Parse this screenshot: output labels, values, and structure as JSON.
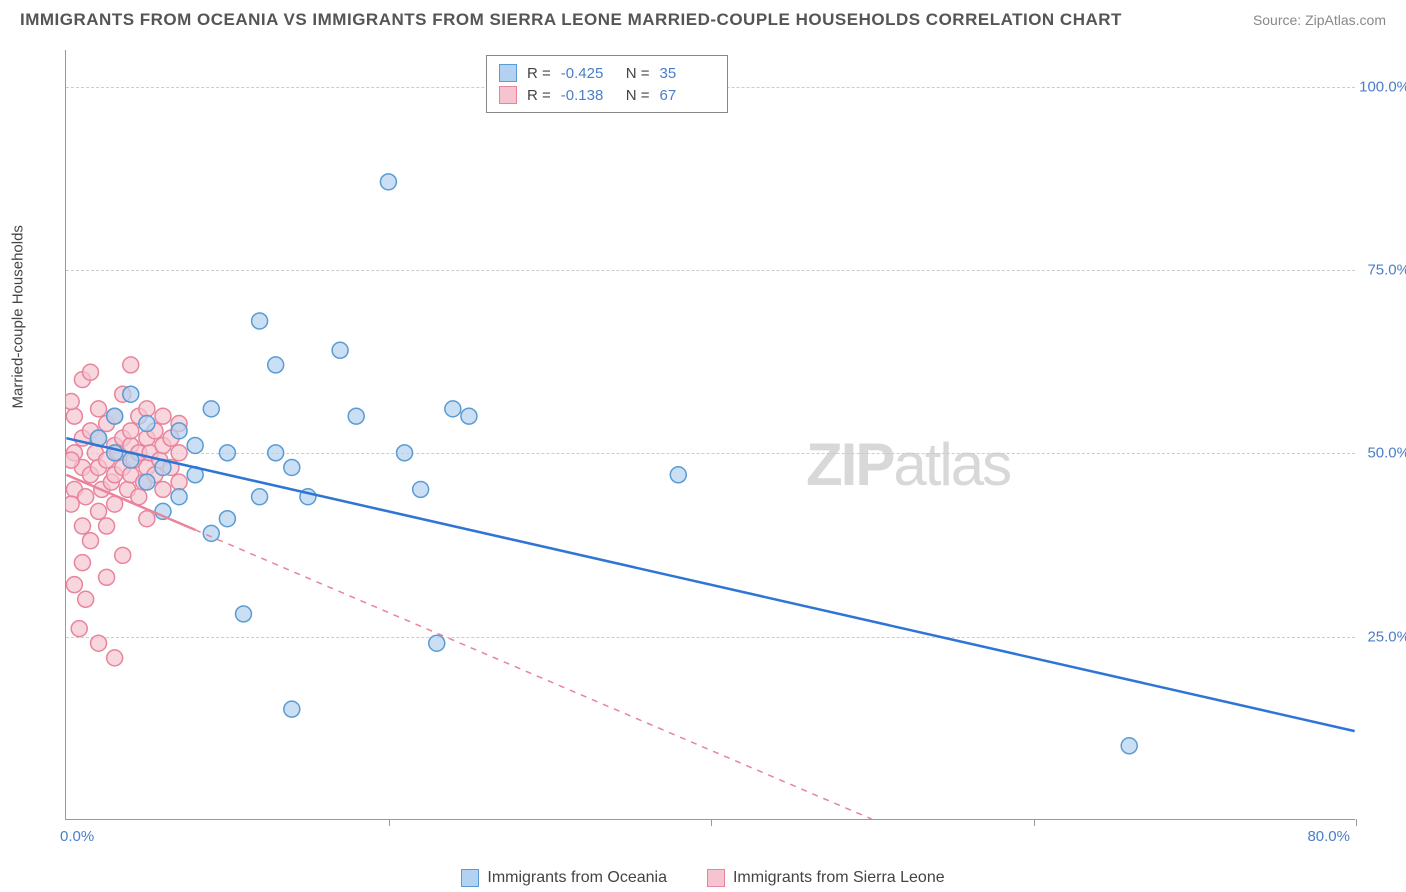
{
  "header": {
    "title": "IMMIGRANTS FROM OCEANIA VS IMMIGRANTS FROM SIERRA LEONE MARRIED-COUPLE HOUSEHOLDS CORRELATION CHART",
    "source": "Source: ZipAtlas.com"
  },
  "chart": {
    "type": "scatter",
    "y_axis_label": "Married-couple Households",
    "watermark": "ZIPatlas",
    "background_color": "#ffffff",
    "grid_color": "#cccccc",
    "axis_color": "#999999",
    "x_range": [
      0,
      80
    ],
    "y_range": [
      0,
      105
    ],
    "x_ticks": [
      0,
      20,
      40,
      60,
      80
    ],
    "x_tick_labels": {
      "0": "0.0%",
      "80": "80.0%"
    },
    "y_ticks": [
      25,
      50,
      75,
      100
    ],
    "y_tick_labels": {
      "25": "25.0%",
      "50": "50.0%",
      "75": "75.0%",
      "100": "100.0%"
    },
    "marker_radius": 8,
    "marker_stroke_width": 1.5,
    "line_width": 2.5,
    "series": [
      {
        "name": "Immigrants from Oceania",
        "color_fill": "#b3d1f0",
        "color_stroke": "#5a9bd4",
        "line_color": "#2e75d6",
        "R": "-0.425",
        "N": "35",
        "trend": {
          "x1": 0,
          "y1": 52,
          "x2": 80,
          "y2": 12,
          "dashed_after_x": null
        },
        "points": [
          [
            2,
            52
          ],
          [
            3,
            50
          ],
          [
            4,
            49
          ],
          [
            5,
            54
          ],
          [
            6,
            48
          ],
          [
            7,
            53
          ],
          [
            7,
            44
          ],
          [
            8,
            51
          ],
          [
            9,
            39
          ],
          [
            9,
            56
          ],
          [
            10,
            50
          ],
          [
            11,
            28
          ],
          [
            12,
            68
          ],
          [
            13,
            62
          ],
          [
            13,
            50
          ],
          [
            15,
            44
          ],
          [
            17,
            64
          ],
          [
            18,
            55
          ],
          [
            20,
            87
          ],
          [
            21,
            50
          ],
          [
            22,
            45
          ],
          [
            24,
            56
          ],
          [
            25,
            55
          ],
          [
            23,
            24
          ],
          [
            14,
            15
          ],
          [
            38,
            47
          ],
          [
            66,
            10
          ],
          [
            5,
            46
          ],
          [
            4,
            58
          ],
          [
            6,
            42
          ],
          [
            8,
            47
          ],
          [
            10,
            41
          ],
          [
            12,
            44
          ],
          [
            14,
            48
          ],
          [
            3,
            55
          ]
        ]
      },
      {
        "name": "Immigrants from Sierra Leone",
        "color_fill": "#f5c4d0",
        "color_stroke": "#e8849c",
        "line_color": "#e8849c",
        "R": "-0.138",
        "N": "67",
        "trend": {
          "x1": 0,
          "y1": 47,
          "x2": 50,
          "y2": 0,
          "dashed_after_x": 8
        },
        "points": [
          [
            0.5,
            50
          ],
          [
            0.5,
            45
          ],
          [
            0.5,
            55
          ],
          [
            1,
            48
          ],
          [
            1,
            52
          ],
          [
            1,
            40
          ],
          [
            1,
            60
          ],
          [
            1.2,
            44
          ],
          [
            1.5,
            53
          ],
          [
            1.5,
            47
          ],
          [
            1.5,
            38
          ],
          [
            1.5,
            61
          ],
          [
            1.8,
            50
          ],
          [
            2,
            56
          ],
          [
            2,
            42
          ],
          [
            2,
            48
          ],
          [
            2,
            52
          ],
          [
            2.2,
            45
          ],
          [
            2.5,
            49
          ],
          [
            2.5,
            54
          ],
          [
            2.5,
            40
          ],
          [
            2.5,
            33
          ],
          [
            2.8,
            46
          ],
          [
            3,
            51
          ],
          [
            3,
            47
          ],
          [
            3,
            55
          ],
          [
            3,
            43
          ],
          [
            3.2,
            50
          ],
          [
            3.5,
            48
          ],
          [
            3.5,
            52
          ],
          [
            3.5,
            58
          ],
          [
            3.5,
            36
          ],
          [
            3.8,
            45
          ],
          [
            4,
            51
          ],
          [
            4,
            47
          ],
          [
            4,
            53
          ],
          [
            4.2,
            49
          ],
          [
            4.5,
            44
          ],
          [
            4.5,
            55
          ],
          [
            4.5,
            50
          ],
          [
            4.8,
            46
          ],
          [
            5,
            52
          ],
          [
            5,
            48
          ],
          [
            5,
            56
          ],
          [
            5,
            41
          ],
          [
            5.2,
            50
          ],
          [
            5.5,
            47
          ],
          [
            5.5,
            53
          ],
          [
            5.8,
            49
          ],
          [
            6,
            45
          ],
          [
            6,
            51
          ],
          [
            6,
            55
          ],
          [
            6.5,
            48
          ],
          [
            6.5,
            52
          ],
          [
            7,
            50
          ],
          [
            7,
            46
          ],
          [
            7,
            54
          ],
          [
            0.8,
            26
          ],
          [
            2,
            24
          ],
          [
            3,
            22
          ],
          [
            1.2,
            30
          ],
          [
            1,
            35
          ],
          [
            0.5,
            32
          ],
          [
            4,
            62
          ],
          [
            0.3,
            57
          ],
          [
            0.3,
            43
          ],
          [
            0.3,
            49
          ]
        ]
      }
    ],
    "legend_top": {
      "R_label": "R =",
      "N_label": "N ="
    },
    "legend_bottom": {
      "items": [
        "Immigrants from Oceania",
        "Immigrants from Sierra Leone"
      ]
    }
  }
}
